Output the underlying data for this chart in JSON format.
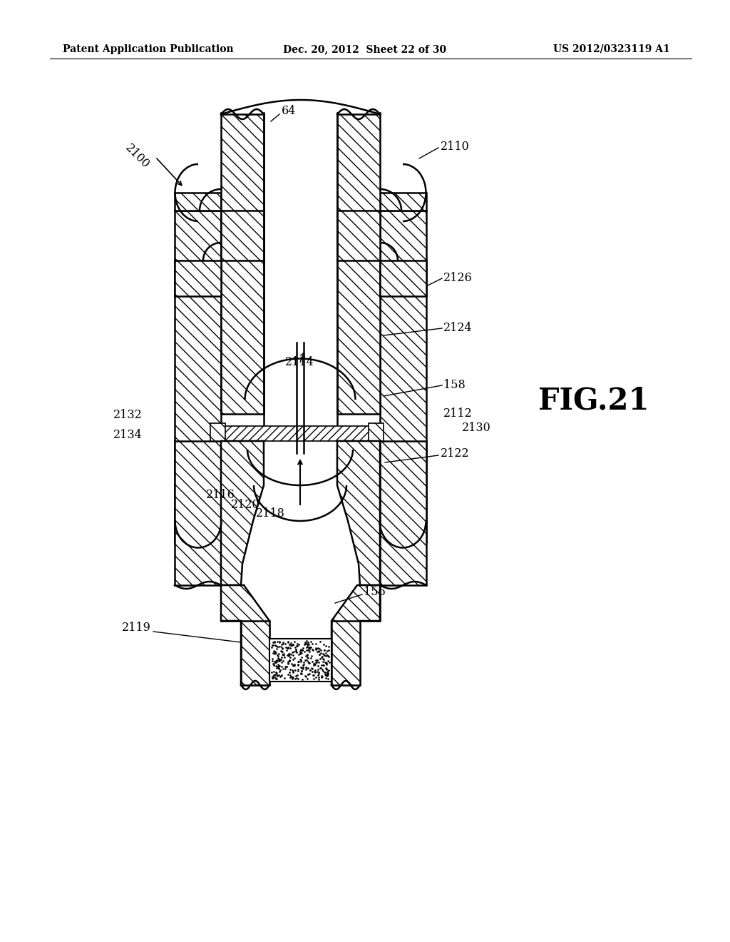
{
  "header_left": "Patent Application Publication",
  "header_mid": "Dec. 20, 2012  Sheet 22 of 30",
  "header_right": "US 2012/0323119 A1",
  "fig_label": "FIG.21",
  "background_color": "#ffffff",
  "line_color": "#000000"
}
